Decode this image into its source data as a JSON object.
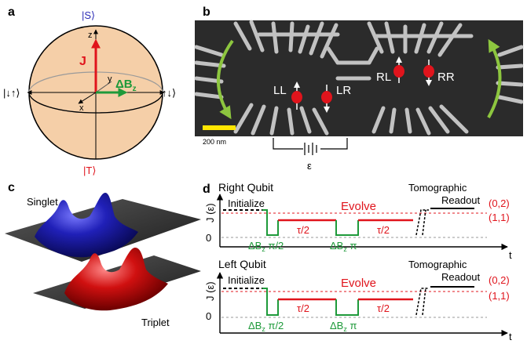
{
  "panels": {
    "a": "a",
    "b": "b",
    "c": "c",
    "d": "d"
  },
  "bloch": {
    "top_state": "|S⟩",
    "bottom_state": "|T⟩",
    "left_state": "|↓↑⟩",
    "right_state": "↑↓⟩",
    "axis_z": "z",
    "axis_y": "y",
    "axis_x": "x",
    "vector_j": "J",
    "vector_db": "ΔB",
    "vector_db_sub": "z",
    "colors": {
      "sphere": "#f5cfa8",
      "j_vector": "#e0141c",
      "db_vector": "#1e9a3a",
      "top_state": "#2b2bb5",
      "bottom_state": "#e0141c"
    }
  },
  "device": {
    "labels": [
      "LL",
      "LR",
      "RL",
      "RR"
    ],
    "scale_bar": "200 nm",
    "epsilon": "ε",
    "colors": {
      "scale_bar": "#ffe600",
      "arrows": "#8dc63f",
      "dot": "#e0141c"
    }
  },
  "wavefunctions": {
    "singlet": "Singlet",
    "triplet": "Triplet",
    "colors": {
      "singlet": "#1a1aa8",
      "triplet": "#d01010"
    }
  },
  "pulse": {
    "ylabel": "J (ε)",
    "xlabel": "t",
    "zero": "0",
    "right_title": "Right Qubit",
    "left_title": "Left Qubit",
    "initialize": "Initialize",
    "evolve": "Evolve",
    "tomographic": "Tomographic",
    "readout": "Readout",
    "level_02": "(0,2)",
    "level_11": "(1,1)",
    "db_label": "ΔB",
    "db_sub": "z",
    "pi_half": " π/2",
    "pi": " π",
    "tau_half": "τ/2",
    "colors": {
      "green": "#1e9a3a",
      "red": "#e0141c"
    }
  }
}
